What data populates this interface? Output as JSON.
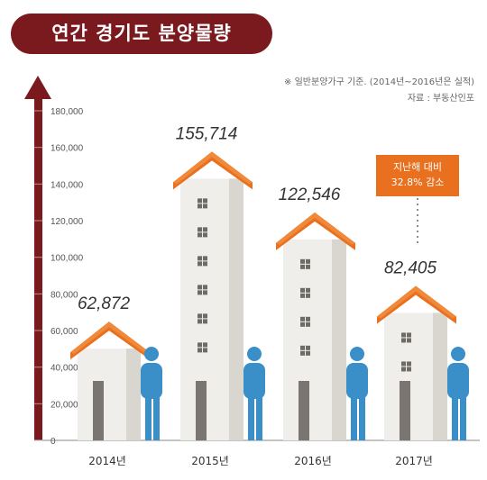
{
  "title": "연간 경기도 분양물량",
  "notes": {
    "basis": "※ 일반분양가구 기준. (2014년~2016년은 실적)",
    "source": "자료 : 부동산인포"
  },
  "callout": {
    "line1": "지난해 대비",
    "line2": "32.8% 감소"
  },
  "colors": {
    "title_bg": "#7a1a1f",
    "axis": "#7a1a1f",
    "roof": "#e8701f",
    "wall": "#f0eeea",
    "figure": "#3a8fc9"
  },
  "chart_data": {
    "type": "bar",
    "categories": [
      "2014년",
      "2015년",
      "2016년",
      "2017년"
    ],
    "values": [
      62872,
      155714,
      122546,
      82405
    ],
    "value_labels": [
      "62,872",
      "155,714",
      "122,546",
      "82,405"
    ],
    "ylim": [
      0,
      180000
    ],
    "yticks": [
      "0",
      "20,000",
      "40,000",
      "60,000",
      "80,000",
      "100,000",
      "120,000",
      "140,000",
      "160,000",
      "180,000"
    ],
    "xlabel": "",
    "ylabel": "",
    "grid": false
  }
}
